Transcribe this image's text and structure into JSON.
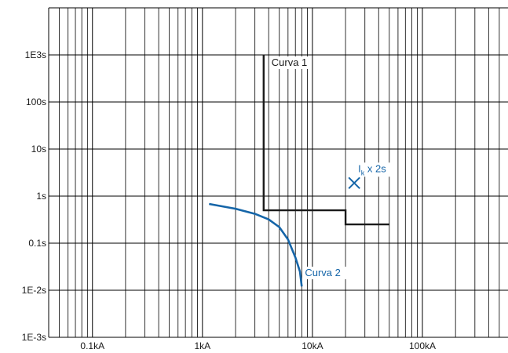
{
  "chart_data": {
    "type": "line",
    "title": "",
    "xlabel": "",
    "ylabel": "",
    "x_scale": "log",
    "y_scale": "log",
    "xlim": [
      0.04,
      600
    ],
    "ylim": [
      0.001,
      10000
    ],
    "grid": true,
    "x_ticks": [
      {
        "value": 0.1,
        "label": "0.1kA"
      },
      {
        "value": 1,
        "label": "1kA"
      },
      {
        "value": 10,
        "label": "10kA"
      },
      {
        "value": 100,
        "label": "100kA"
      }
    ],
    "y_ticks": [
      {
        "value": 0.001,
        "label": "1E-3s"
      },
      {
        "value": 0.01,
        "label": "1E-2s"
      },
      {
        "value": 0.1,
        "label": "0.1s"
      },
      {
        "value": 1,
        "label": "1s"
      },
      {
        "value": 10,
        "label": "10s"
      },
      {
        "value": 100,
        "label": "100s"
      },
      {
        "value": 1000,
        "label": "1E3s"
      }
    ],
    "series": [
      {
        "name": "Curva 1",
        "color": "#1a1a1a",
        "points": [
          [
            3.6,
            1000
          ],
          [
            3.6,
            0.5
          ],
          [
            20,
            0.5
          ],
          [
            20,
            0.25
          ],
          [
            50,
            0.25
          ]
        ]
      },
      {
        "name": "Curva 2",
        "color": "#1565a8",
        "points": [
          [
            1.15,
            0.68
          ],
          [
            2,
            0.54
          ],
          [
            3,
            0.42
          ],
          [
            4,
            0.32
          ],
          [
            5,
            0.22
          ],
          [
            6,
            0.12
          ],
          [
            7,
            0.05
          ],
          [
            7.7,
            0.025
          ],
          [
            8,
            0.012
          ]
        ]
      }
    ],
    "annotations": [
      {
        "type": "marker",
        "marker": "x",
        "x": 24,
        "y": 1.9,
        "color": "#1565a8",
        "label_main": "I",
        "label_sub": "k",
        "label_rest": " x 2s"
      }
    ]
  }
}
